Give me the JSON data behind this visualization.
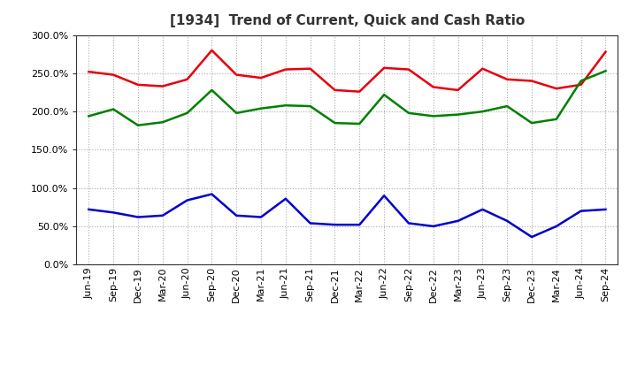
{
  "title": "[1934]  Trend of Current, Quick and Cash Ratio",
  "x_labels": [
    "Jun-19",
    "Sep-19",
    "Dec-19",
    "Mar-20",
    "Jun-20",
    "Sep-20",
    "Dec-20",
    "Mar-21",
    "Jun-21",
    "Sep-21",
    "Dec-21",
    "Mar-22",
    "Jun-22",
    "Sep-22",
    "Dec-22",
    "Mar-23",
    "Jun-23",
    "Sep-23",
    "Dec-23",
    "Mar-24",
    "Jun-24",
    "Sep-24"
  ],
  "current_ratio": [
    252,
    248,
    235,
    233,
    242,
    280,
    248,
    244,
    255,
    256,
    228,
    226,
    257,
    255,
    232,
    228,
    256,
    242,
    240,
    230,
    235,
    278
  ],
  "quick_ratio": [
    194,
    203,
    182,
    186,
    198,
    228,
    198,
    204,
    208,
    207,
    185,
    184,
    222,
    198,
    194,
    196,
    200,
    207,
    185,
    190,
    240,
    253
  ],
  "cash_ratio": [
    72,
    68,
    62,
    64,
    84,
    92,
    64,
    62,
    86,
    54,
    52,
    52,
    90,
    54,
    50,
    57,
    72,
    57,
    36,
    50,
    70,
    72
  ],
  "current_color": "#e8000d",
  "quick_color": "#008000",
  "cash_color": "#0000cc",
  "bg_color": "#ffffff",
  "plot_bg_color": "#ffffff",
  "grid_color": "#aaaaaa",
  "ylim": [
    0,
    300
  ],
  "yticks": [
    0,
    50,
    100,
    150,
    200,
    250,
    300
  ],
  "title_color": "#333333",
  "label_fontsize": 8,
  "title_fontsize": 11
}
